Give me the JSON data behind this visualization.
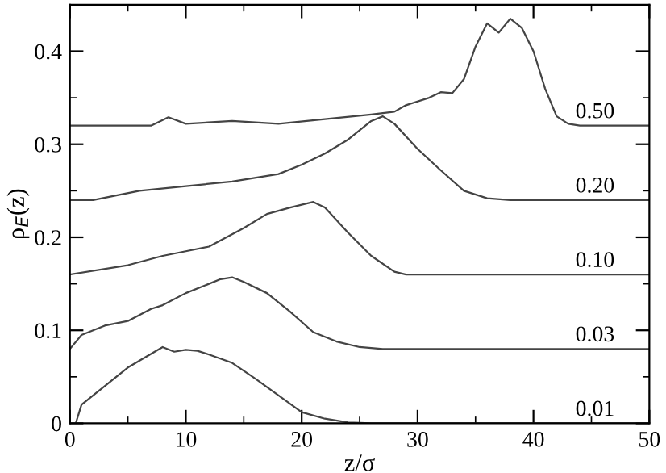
{
  "chart_data": {
    "type": "line",
    "xlabel": "z/σ",
    "ylabel": "ρ$_{E}$(z)",
    "xlim": [
      0,
      50
    ],
    "ylim": [
      0,
      0.45
    ],
    "xticks": [
      0,
      {
        "value": 5,
        "label": null
      },
      10,
      {
        "value": 15,
        "label": null
      },
      20,
      {
        "value": 25,
        "label": null
      },
      30,
      {
        "value": 35,
        "label": null
      },
      40,
      {
        "value": 45,
        "label": null
      },
      50
    ],
    "yticks": [
      0,
      {
        "value": 0.05,
        "label": null
      },
      0.1,
      {
        "value": 0.15,
        "label": null
      },
      0.2,
      {
        "value": 0.25,
        "label": null
      },
      0.3,
      {
        "value": 0.35,
        "label": null
      },
      0.4
    ],
    "grid": false,
    "legend": false,
    "marker": "none",
    "line_style": "solid",
    "series": [
      {
        "name": "0.01",
        "color": "#444444",
        "x": [
          0.5,
          1,
          3,
          5,
          8,
          9,
          10,
          11,
          12,
          14,
          16,
          18,
          20,
          22,
          24,
          26,
          50
        ],
        "values": [
          0,
          0.02,
          0.04,
          0.06,
          0.082,
          0.077,
          0.079,
          0.078,
          0.074,
          0.065,
          0.048,
          0.03,
          0.012,
          0.005,
          0.001,
          0,
          0
        ]
      },
      {
        "name": "0.03",
        "color": "#444444",
        "x": [
          0,
          1,
          3,
          5,
          7,
          8,
          10,
          12,
          13,
          14,
          15,
          17,
          19,
          21,
          23,
          25,
          27,
          50
        ],
        "values": [
          0.08,
          0.095,
          0.105,
          0.11,
          0.123,
          0.127,
          0.14,
          0.15,
          0.155,
          0.157,
          0.152,
          0.14,
          0.12,
          0.098,
          0.088,
          0.082,
          0.08,
          0.08
        ]
      },
      {
        "name": "0.10",
        "color": "#444444",
        "x": [
          0,
          5,
          8,
          10,
          12,
          15,
          17,
          19,
          21,
          22,
          24,
          26,
          28,
          29,
          50
        ],
        "values": [
          0.16,
          0.17,
          0.18,
          0.185,
          0.19,
          0.21,
          0.225,
          0.232,
          0.238,
          0.232,
          0.205,
          0.18,
          0.163,
          0.16,
          0.16
        ]
      },
      {
        "name": "0.20",
        "color": "#444444",
        "x": [
          0,
          2,
          4,
          6,
          10,
          14,
          18,
          20,
          22,
          24,
          25,
          26,
          27,
          28,
          30,
          32,
          34,
          36,
          38,
          50
        ],
        "values": [
          0.24,
          0.24,
          0.245,
          0.25,
          0.255,
          0.26,
          0.268,
          0.278,
          0.29,
          0.305,
          0.315,
          0.325,
          0.33,
          0.322,
          0.295,
          0.272,
          0.25,
          0.242,
          0.24,
          0.24
        ]
      },
      {
        "name": "0.50",
        "color": "#444444",
        "x": [
          0,
          7,
          8.5,
          10,
          14,
          18,
          22,
          26,
          28,
          29,
          31,
          32,
          33,
          34,
          35,
          36,
          37,
          38,
          39,
          40,
          41,
          42,
          43,
          44,
          50
        ],
        "values": [
          0.32,
          0.32,
          0.329,
          0.322,
          0.325,
          0.322,
          0.327,
          0.332,
          0.335,
          0.342,
          0.35,
          0.356,
          0.355,
          0.37,
          0.405,
          0.43,
          0.42,
          0.435,
          0.425,
          0.4,
          0.36,
          0.33,
          0.322,
          0.32,
          0.32
        ]
      }
    ]
  }
}
